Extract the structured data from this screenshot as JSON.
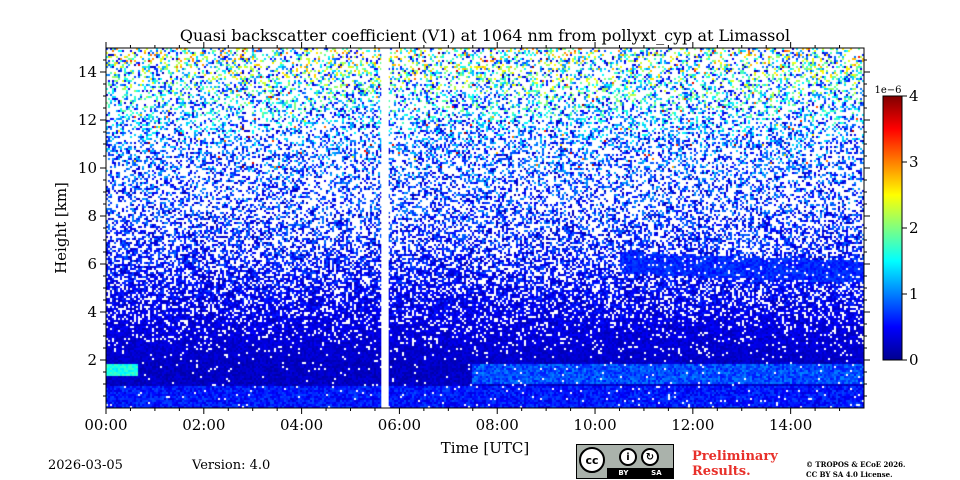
{
  "chart_data": {
    "type": "heatmap",
    "title": "Quasi backscatter coefficient (V1) at 1064 nm from pollyxt_cyp at Limassol",
    "xlabel": "Time [UTC]",
    "ylabel": "Height [km]",
    "xlim_hours": [
      0,
      15.5
    ],
    "ylim_km": [
      0,
      15
    ],
    "x_ticks": [
      {
        "hour": 0,
        "label": "00:00"
      },
      {
        "hour": 2,
        "label": "02:00"
      },
      {
        "hour": 4,
        "label": "04:00"
      },
      {
        "hour": 6,
        "label": "06:00"
      },
      {
        "hour": 8,
        "label": "08:00"
      },
      {
        "hour": 10,
        "label": "10:00"
      },
      {
        "hour": 12,
        "label": "12:00"
      },
      {
        "hour": 14,
        "label": "14:00"
      }
    ],
    "y_ticks": [
      {
        "km": 2,
        "label": "2"
      },
      {
        "km": 4,
        "label": "4"
      },
      {
        "km": 6,
        "label": "6"
      },
      {
        "km": 8,
        "label": "8"
      },
      {
        "km": 10,
        "label": "10"
      },
      {
        "km": 12,
        "label": "12"
      },
      {
        "km": 14,
        "label": "14"
      }
    ],
    "colorbar": {
      "min": 0,
      "max": 4,
      "exponent_label": "1e−6",
      "ticks": [
        {
          "value": 0,
          "label": "0"
        },
        {
          "value": 1,
          "label": "1"
        },
        {
          "value": 2,
          "label": "2"
        },
        {
          "value": 3,
          "label": "3"
        },
        {
          "value": 4,
          "label": "4"
        }
      ],
      "colormap": "jet"
    },
    "data_gap_hours": [
      5.63,
      5.78
    ],
    "features": [
      {
        "name": "boundary layer",
        "top_km": 2.0,
        "value": 0.6
      },
      {
        "name": "lofted aerosol layer",
        "start_hour": 10.5,
        "end_hour": 15.5,
        "height_km": [
          5.3,
          6.2
        ],
        "value": 0.5
      },
      {
        "name": "near-surface enhanced layer",
        "start_hour": 0,
        "end_hour": 0.65,
        "height_km": [
          1.3,
          1.8
        ],
        "value": 1.4
      }
    ]
  },
  "footer": {
    "date": "2026-03-05",
    "version": "Version: 4.0",
    "preliminary": "Preliminary",
    "results": "Results.",
    "copyright_line1": "© TROPOS & ECoE 2026.",
    "copyright_line2": "CC BY SA 4.0 License.",
    "license_badge": {
      "cc": "cc",
      "by": "BY",
      "sa": "SA"
    }
  }
}
